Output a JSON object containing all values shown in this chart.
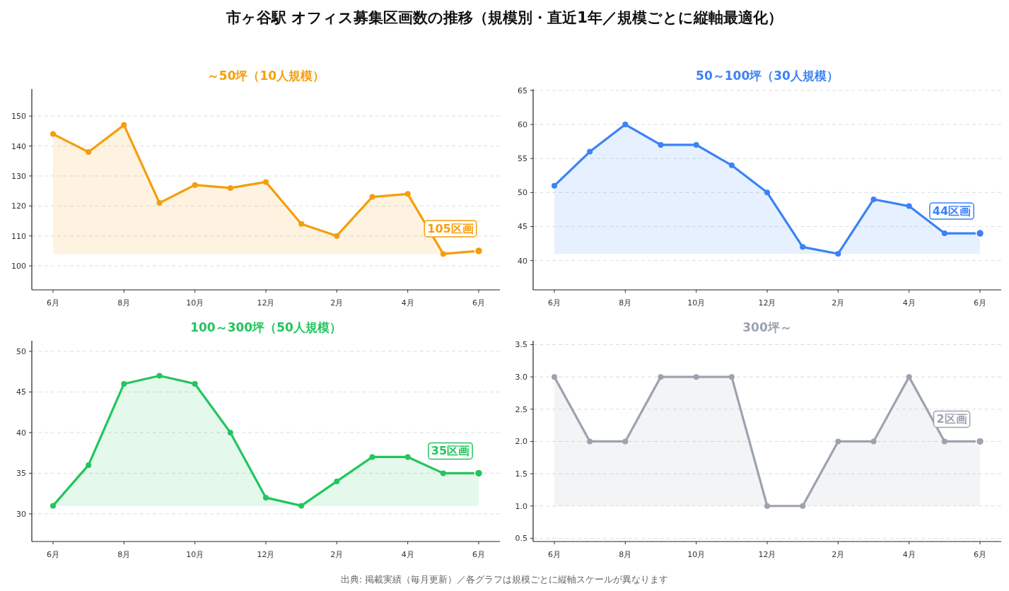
{
  "chart_data": [
    {
      "type": "line",
      "title": "～50坪（10人規模）",
      "categories": [
        "6月",
        null,
        "8月",
        null,
        "10月",
        null,
        "12月",
        null,
        "2月",
        null,
        "4月",
        null,
        "6月"
      ],
      "series": [
        {
          "color": "#f59e0b",
          "values": [
            144,
            138,
            147,
            121,
            127,
            126,
            128,
            114,
            110,
            123,
            124,
            104,
            105
          ]
        }
      ],
      "ylim": [
        92,
        159
      ],
      "yticks": [
        100,
        110,
        120,
        130,
        140,
        150
      ],
      "grid": "y",
      "marker": "circle",
      "annotations": [
        "市ヶ谷駅 オフィス募集区画数の推移（規模別・直近1年／規模ごとに縦軸最適化）",
        {
          "text": "105区画",
          "y": 105
        }
      ]
    },
    {
      "type": "line",
      "title": "50～100坪（30人規模）",
      "categories": [
        "6月",
        null,
        "8月",
        null,
        "10月",
        null,
        "12月",
        null,
        "2月",
        null,
        "4月",
        null,
        "6月"
      ],
      "series": [
        {
          "color": "#3b82f6",
          "values": [
            51,
            56,
            60,
            57,
            57,
            54,
            50,
            42,
            41,
            49,
            48,
            44,
            44
          ]
        }
      ],
      "ylim": [
        35.7,
        65.2
      ],
      "yticks": [
        40,
        45,
        50,
        55,
        60,
        65
      ],
      "grid": "y",
      "marker": "circle",
      "annotations": [
        {
          "text": "44区画",
          "y": 44
        }
      ]
    },
    {
      "type": "line",
      "title": "100～300坪（50人規模）",
      "categories": [
        "6月",
        null,
        "8月",
        null,
        "10月",
        null,
        "12月",
        null,
        "2月",
        null,
        "4月",
        null,
        "6月"
      ],
      "series": [
        {
          "color": "#22c55e",
          "values": [
            31,
            36,
            46,
            47,
            46,
            40,
            32,
            31,
            34,
            37,
            37,
            35,
            35
          ]
        }
      ],
      "ylim": [
        26.6,
        51.3
      ],
      "yticks": [
        30,
        35,
        40,
        45,
        50
      ],
      "grid": "y",
      "marker": "circle",
      "annotations": [
        {
          "text": "35区画",
          "y": 35
        }
      ]
    },
    {
      "type": "line",
      "title": "300坪～",
      "categories": [
        "6月",
        null,
        "8月",
        null,
        "10月",
        null,
        "12月",
        null,
        "2月",
        null,
        "4月",
        null,
        "6月"
      ],
      "series": [
        {
          "color": "#9ca3af",
          "values": [
            3,
            2,
            2,
            3,
            3,
            3,
            1,
            1,
            2,
            2,
            3,
            2,
            2
          ]
        }
      ],
      "ylim": [
        0.45,
        3.56
      ],
      "yticks": [
        {
          "value": 0.5,
          "label": "0.5"
        },
        {
          "value": 1,
          "label": "1.0"
        },
        {
          "value": 1.5,
          "label": "1.5"
        },
        {
          "value": 2,
          "label": "2.0"
        },
        {
          "value": 2.5,
          "label": "2.5"
        },
        {
          "value": 3,
          "label": "3.0"
        },
        {
          "value": 3.5,
          "label": "3.5"
        }
      ],
      "grid": "y",
      "marker": "circle",
      "annotations": [
        {
          "text": "2区画",
          "y": 2
        },
        "出典: 掲載実績（毎月更新）／各グラフは規模ごとに縦軸スケールが異なります"
      ]
    }
  ]
}
